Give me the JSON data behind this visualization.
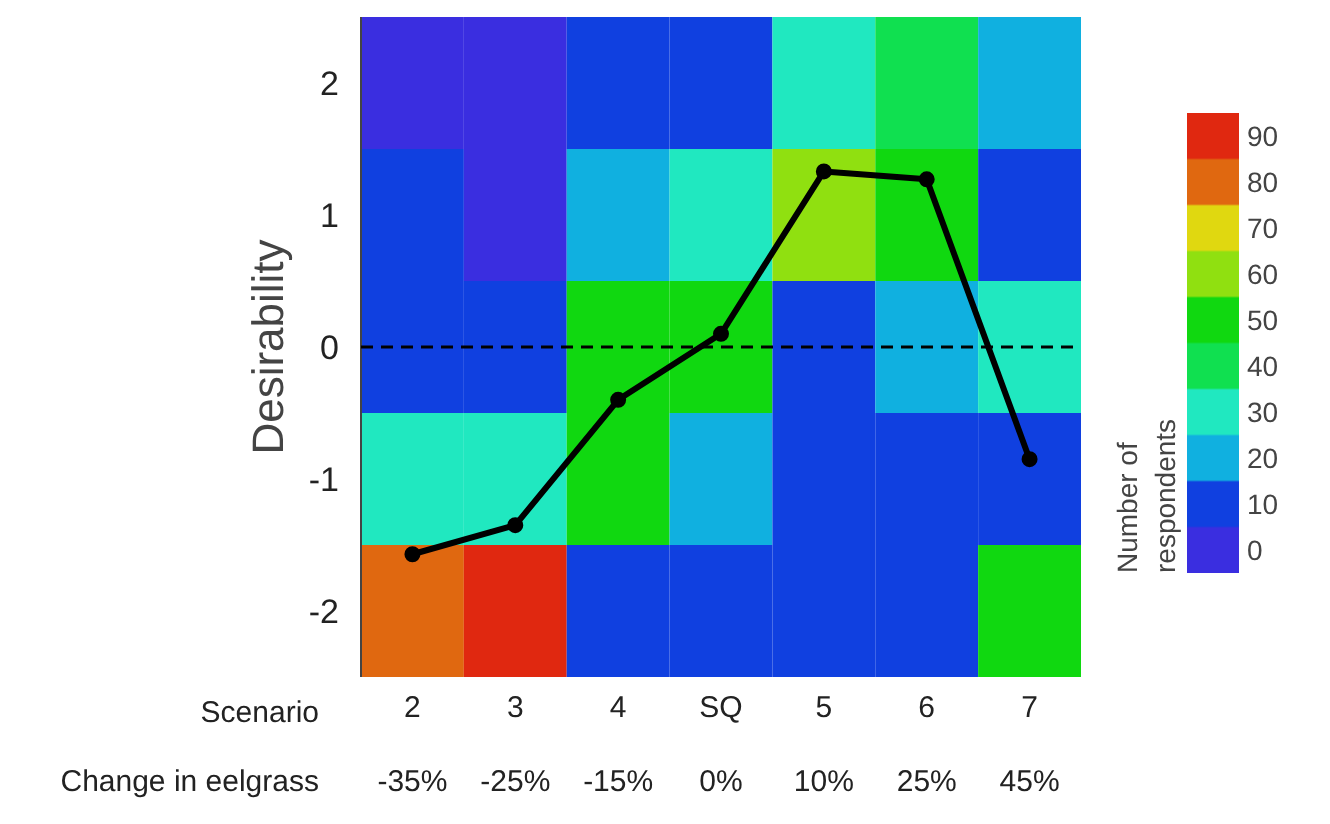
{
  "chart_data": {
    "type": "heatmap",
    "ylabel": "Desirability",
    "clabel": "Number of respondents",
    "categories": [
      "2",
      "3",
      "4",
      "SQ",
      "5",
      "6",
      "7"
    ],
    "cells": [
      [
        0,
        0,
        10,
        10,
        30,
        40,
        20
      ],
      [
        10,
        0,
        20,
        30,
        60,
        50,
        10
      ],
      [
        10,
        10,
        50,
        50,
        10,
        20,
        30
      ],
      [
        30,
        30,
        50,
        20,
        10,
        10,
        10
      ],
      [
        80,
        90,
        10,
        10,
        10,
        10,
        50
      ]
    ],
    "colors": [
      "#3a2ee0",
      "#1040e0",
      "#10b0e0",
      "#20e8c0",
      "#10e050",
      "#10d810",
      "#90e010",
      "#e0d810",
      "#e06810",
      "#e02810"
    ],
    "clim": [
      -5,
      95
    ],
    "cticks": [
      0,
      10,
      20,
      30,
      40,
      50,
      60,
      70,
      80,
      90
    ],
    "ylim": [
      -2.5,
      2.5
    ],
    "yticks": [
      -2,
      -1,
      0,
      1,
      2
    ],
    "series": [
      {
        "type": "line",
        "color": "#000000",
        "values": [
          -1.57,
          -1.35,
          -0.4,
          0.1,
          1.33,
          1.27,
          -0.85
        ]
      }
    ],
    "marker": "circle",
    "ref_lines": [
      {
        "axis": "y",
        "value": 0,
        "color": "#000000",
        "line_style": "dashed"
      }
    ],
    "annotations": [
      "Scenario",
      "Change in eelgrass",
      "-35%",
      "-25%",
      "-15%",
      "0%",
      "10%",
      "25%",
      "45%"
    ]
  }
}
